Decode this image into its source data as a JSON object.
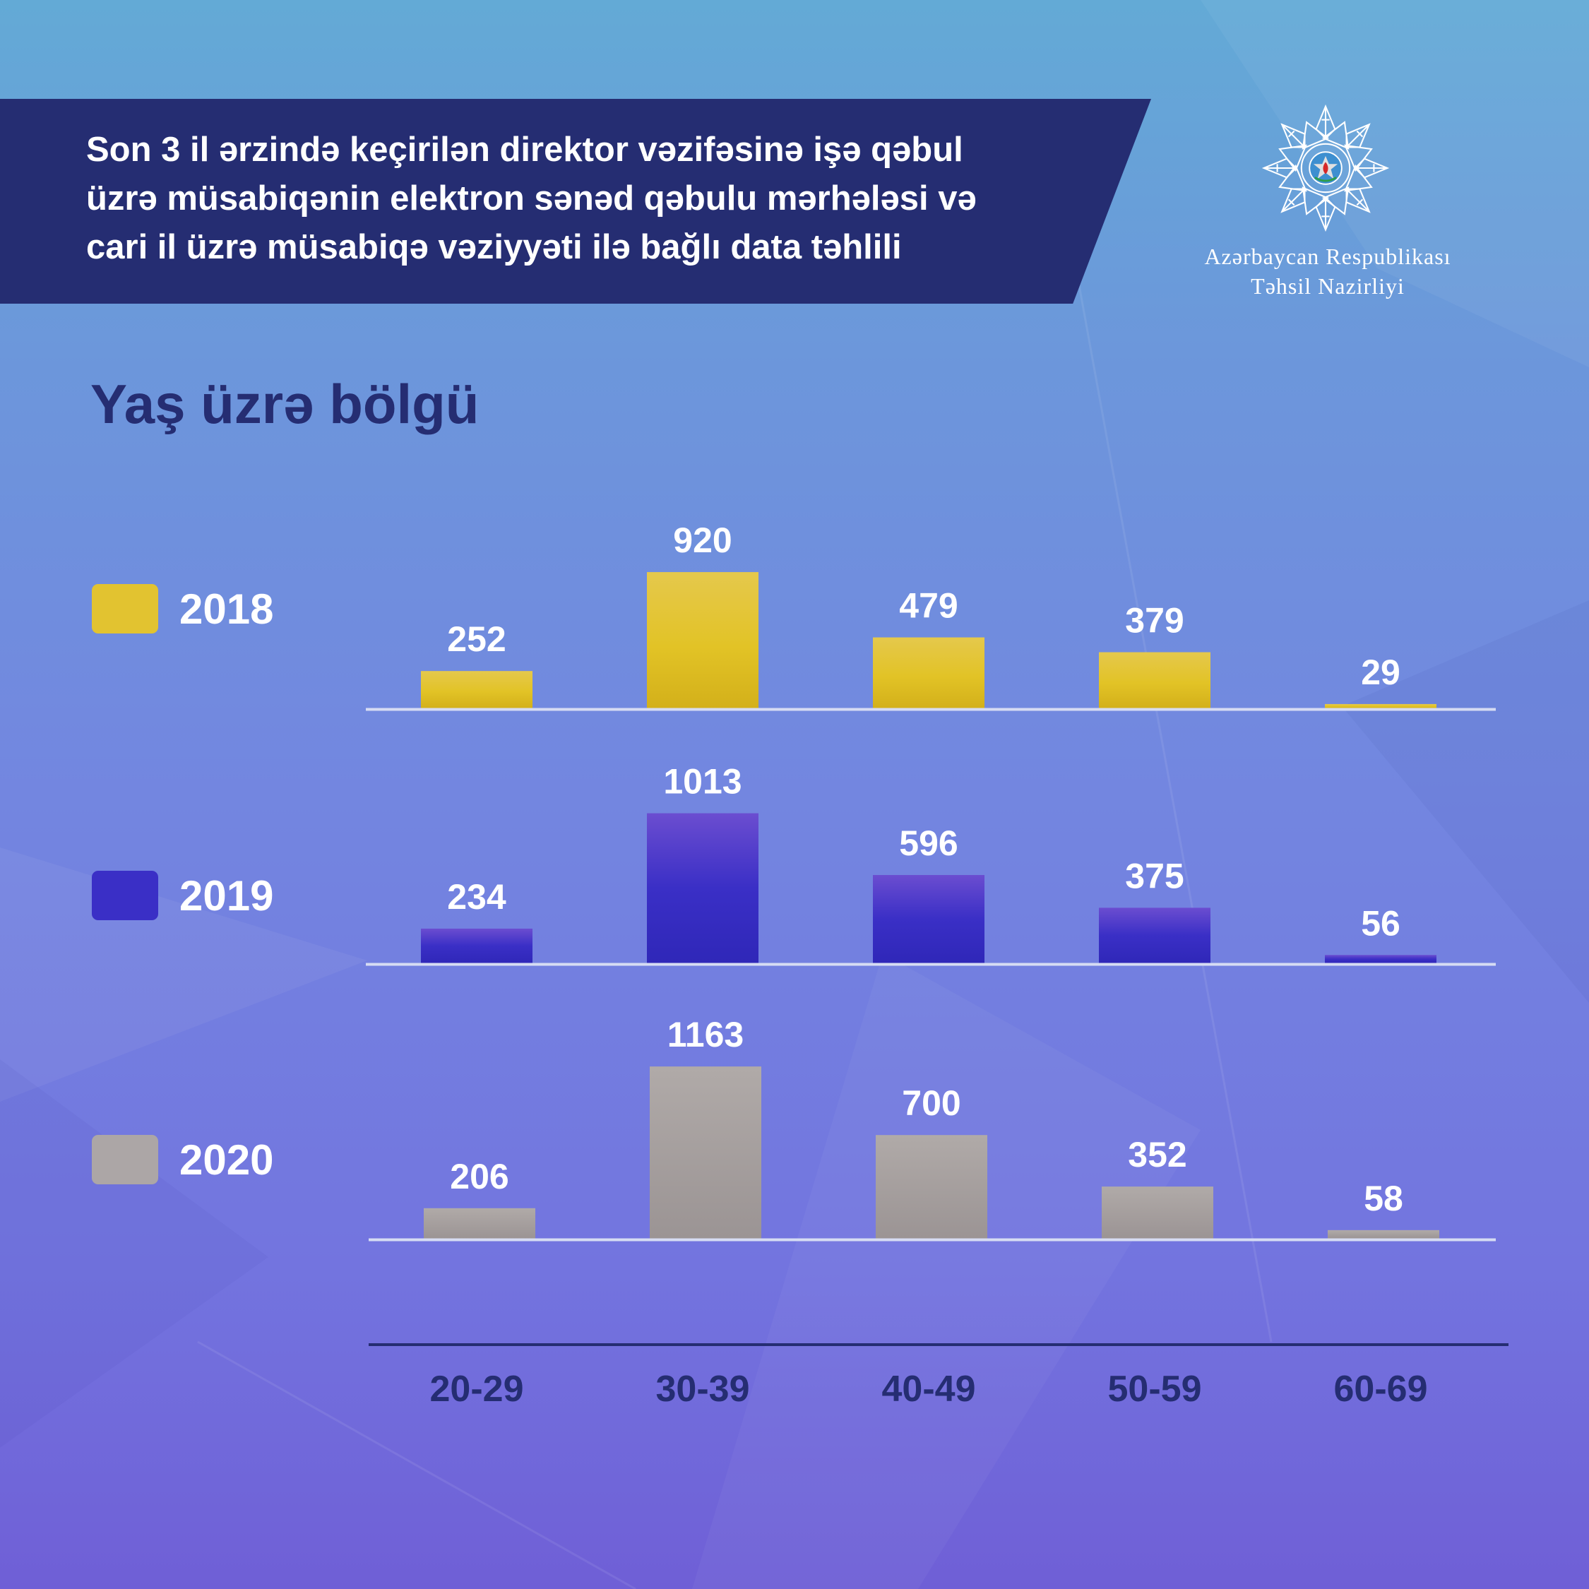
{
  "title": {
    "lines": [
      "Son 3 il ərzində keçirilən direktor vəzifəsinə işə qəbul",
      "üzrə müsabiqənin elektron sənəd qəbulu mərhələsi və",
      "cari il üzrə müsabiqə vəziyyəti ilə bağlı data təhlili"
    ]
  },
  "logo": {
    "icon": "ministry-emblem-icon",
    "line1": "Azərbaycan Respublikası",
    "line2": "Təhsil Nazirliyi"
  },
  "colors": {
    "banner": "#252d72",
    "series_2018": "#e2c330",
    "series_2019": "#3a2fc6",
    "series_2020": "#aca6a6",
    "baseline": "#d6dcf3",
    "axis_line": "#252d72",
    "category_text": "#252d72"
  },
  "chart_data": {
    "type": "bar",
    "title": "Yaş üzrə bölgü",
    "categories": [
      "20-29",
      "30-39",
      "40-49",
      "50-59",
      "60-69"
    ],
    "layout": "three stacked panels sharing one category axis, legend on left",
    "series": [
      {
        "name": "2018",
        "values": [
          252,
          920,
          479,
          379,
          29
        ]
      },
      {
        "name": "2019",
        "values": [
          234,
          1013,
          596,
          375,
          56
        ]
      },
      {
        "name": "2020",
        "values": [
          206,
          1163,
          700,
          352,
          58
        ]
      }
    ],
    "data_labels": true,
    "grid": false,
    "legend": "left"
  }
}
